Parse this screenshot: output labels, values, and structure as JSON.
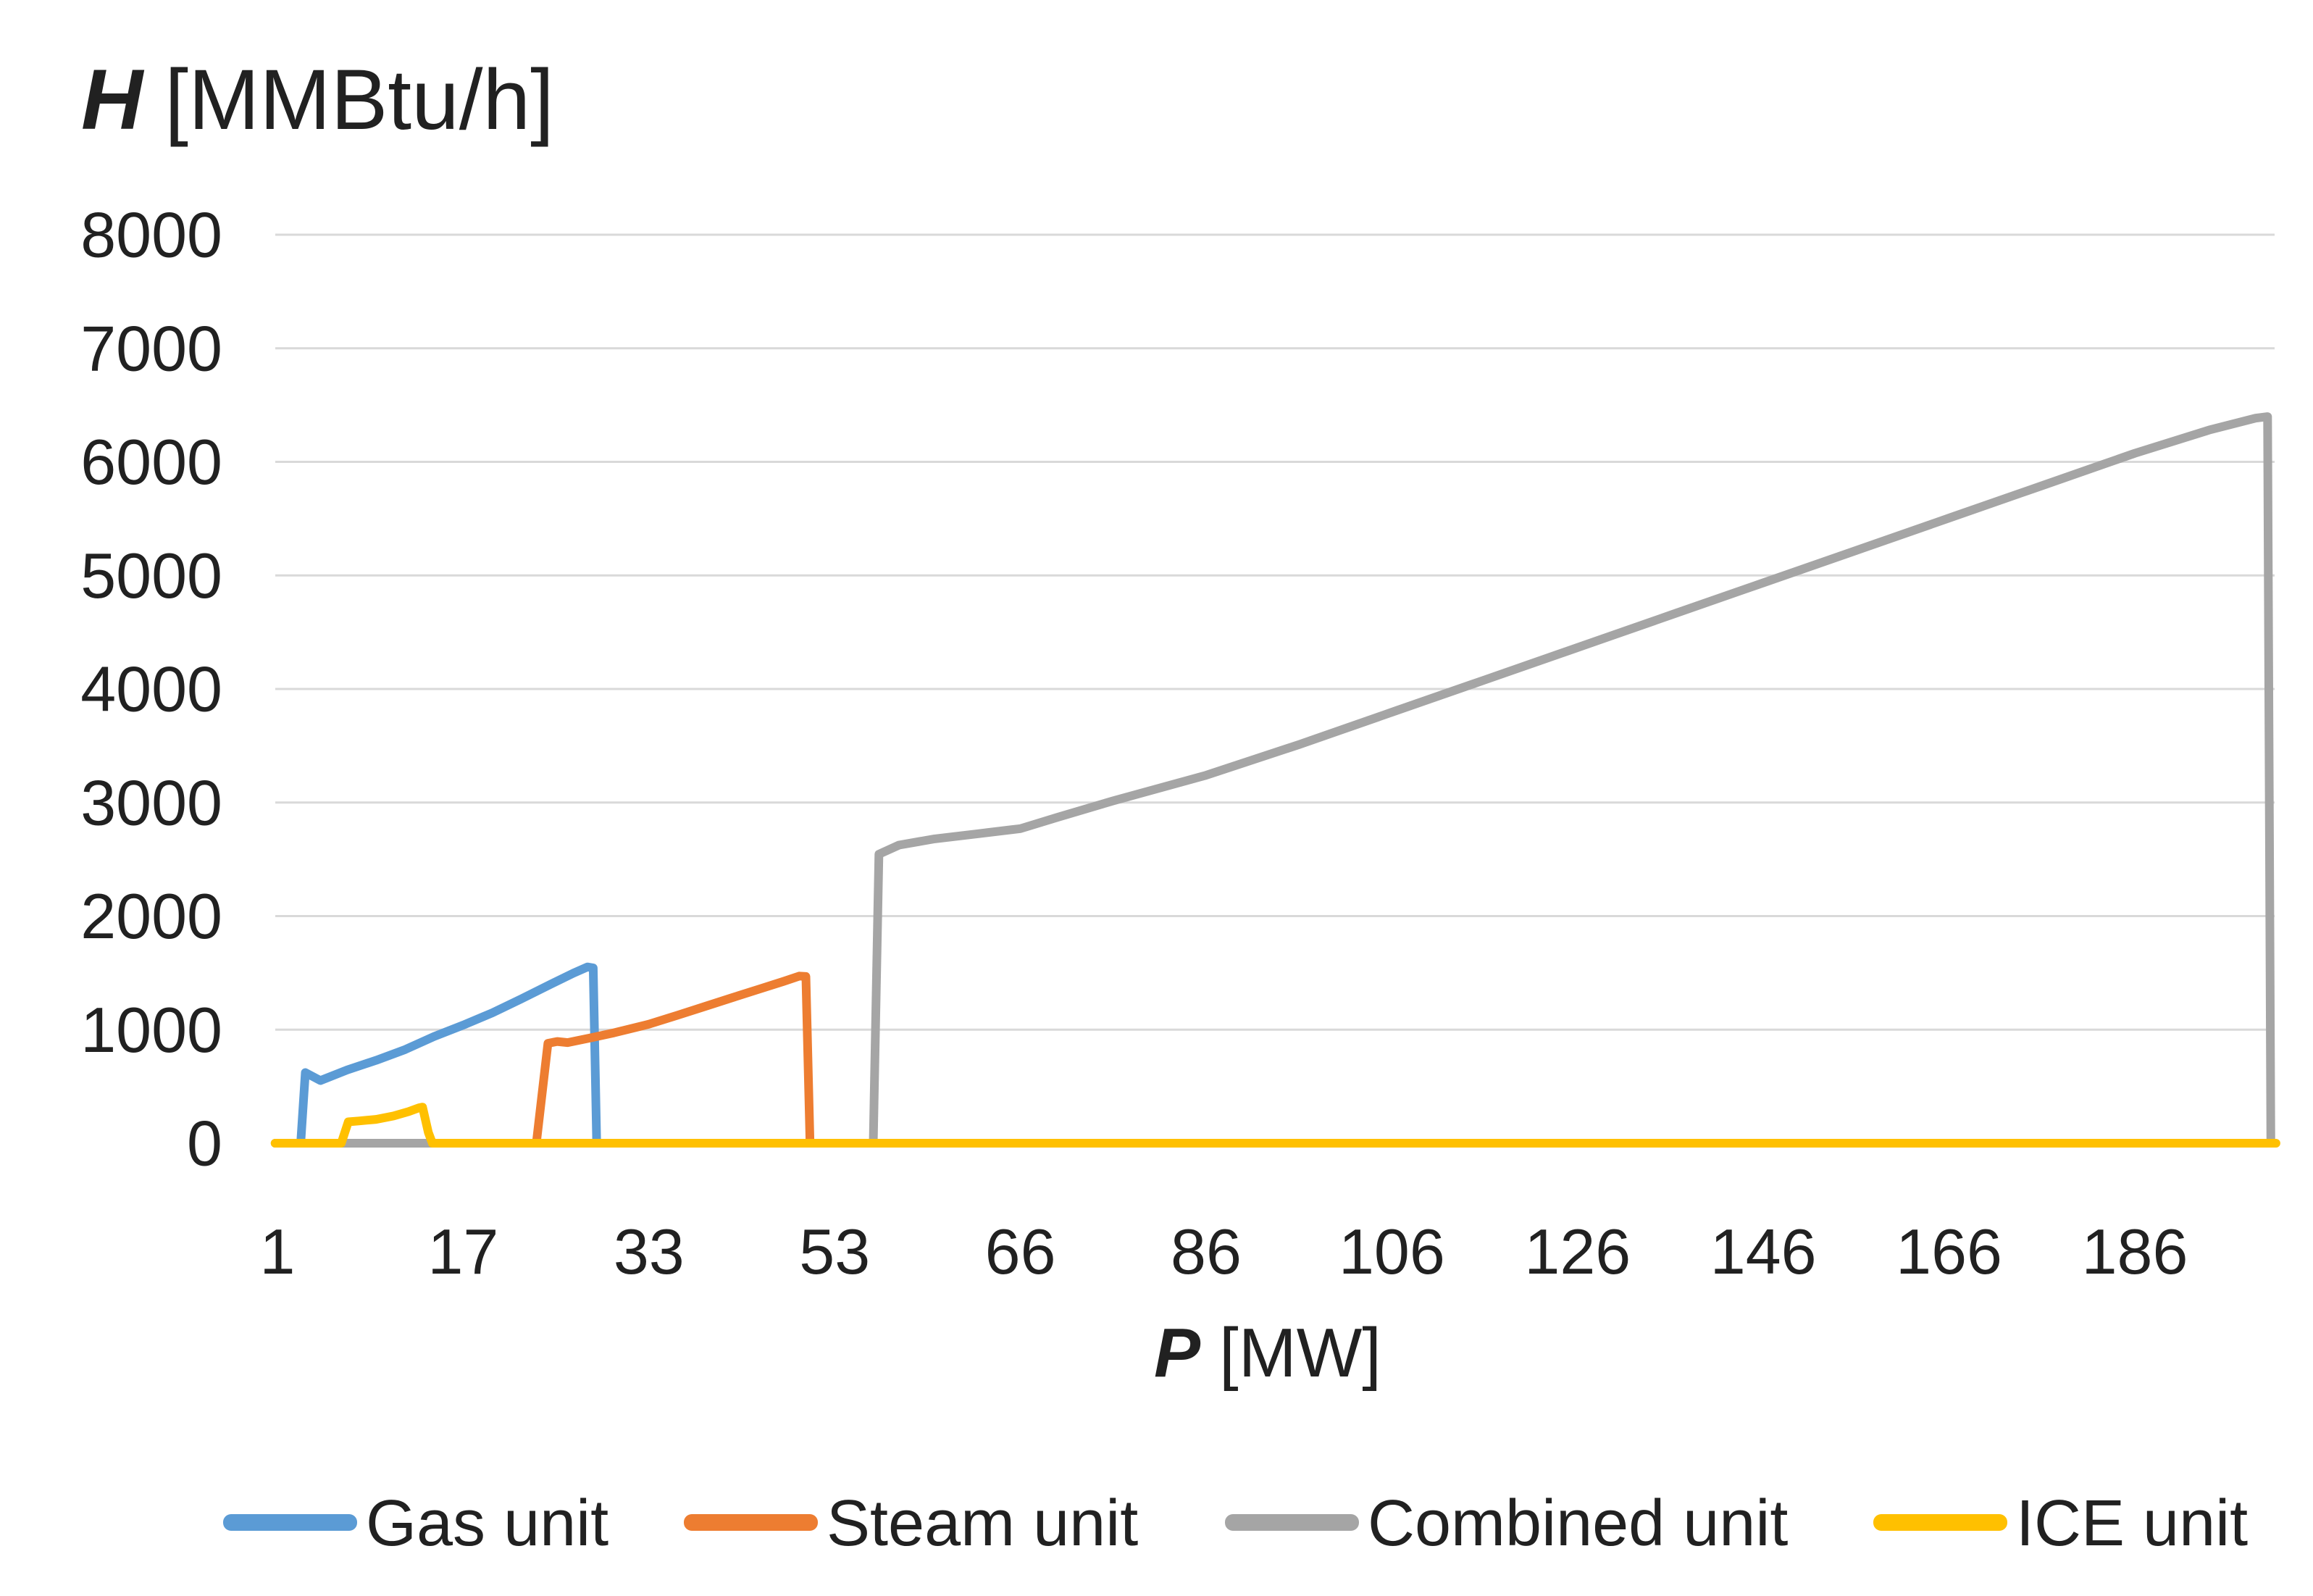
{
  "page": {
    "background": "#ffffff"
  },
  "chart_data": {
    "type": "line",
    "title": {
      "symbol": "H",
      "unit_label": "[MMBtu/h]"
    },
    "x_axis": {
      "symbol": "P",
      "unit_label": "[MW]",
      "axis_type": "category",
      "tick_values": [
        1,
        17,
        33,
        53,
        66,
        86,
        106,
        126,
        146,
        166,
        186
      ]
    },
    "y_axis": {
      "ticks": [
        0,
        1000,
        2000,
        3000,
        4000,
        5000,
        6000,
        7000,
        8000
      ],
      "min": 0,
      "max": 8000,
      "grid": true
    },
    "grid_color": "#d9d9d9",
    "text_color": "#212121",
    "line_width": 12,
    "legend_position": "bottom",
    "series": [
      {
        "name": "Gas unit",
        "color": "#5B9BD5",
        "points": [
          [
            3.0,
            0
          ],
          [
            3.4,
            622
          ],
          [
            4.7,
            552
          ],
          [
            7,
            645
          ],
          [
            9.5,
            730
          ],
          [
            12,
            825
          ],
          [
            14.5,
            940
          ],
          [
            17,
            1040
          ],
          [
            19.5,
            1148
          ],
          [
            22,
            1270
          ],
          [
            24.5,
            1398
          ],
          [
            26.5,
            1498
          ],
          [
            27.7,
            1552
          ],
          [
            28.2,
            1544
          ],
          [
            28.5,
            0
          ]
        ]
      },
      {
        "name": "Steam unit",
        "color": "#ED7D31",
        "points": [
          [
            23.3,
            0
          ],
          [
            24.3,
            880
          ],
          [
            25.1,
            896
          ],
          [
            26,
            886
          ],
          [
            28,
            928
          ],
          [
            30,
            972
          ],
          [
            33,
            1048
          ],
          [
            36,
            1125
          ],
          [
            39,
            1203
          ],
          [
            42,
            1282
          ],
          [
            45,
            1360
          ],
          [
            47.5,
            1425
          ],
          [
            49.2,
            1472
          ],
          [
            49.9,
            1468
          ],
          [
            50.35,
            0
          ]
        ]
      },
      {
        "name": "Combined unit",
        "color": "#A5A5A5",
        "points": [
          [
            0.8,
            0
          ],
          [
            55.7,
            0
          ],
          [
            56.1,
            2545
          ],
          [
            57.5,
            2625
          ],
          [
            60,
            2680
          ],
          [
            63,
            2725
          ],
          [
            66,
            2770
          ],
          [
            70,
            2870
          ],
          [
            76,
            3015
          ],
          [
            86,
            3240
          ],
          [
            96,
            3510
          ],
          [
            106,
            3795
          ],
          [
            116,
            4080
          ],
          [
            126,
            4365
          ],
          [
            136,
            4650
          ],
          [
            146,
            4935
          ],
          [
            156,
            5220
          ],
          [
            166,
            5505
          ],
          [
            176,
            5790
          ],
          [
            186,
            6075
          ],
          [
            194,
            6280
          ],
          [
            199,
            6385
          ],
          [
            200.3,
            6398
          ],
          [
            200.65,
            0
          ]
        ]
      },
      {
        "name": "ICE unit",
        "color": "#FFC000",
        "points": [
          [
            0.8,
            0
          ],
          [
            6.5,
            0
          ],
          [
            7.1,
            188
          ],
          [
            8,
            196
          ],
          [
            9.5,
            210
          ],
          [
            11,
            240
          ],
          [
            12.3,
            278
          ],
          [
            13.2,
            312
          ],
          [
            13.5,
            318
          ],
          [
            14.0,
            95
          ],
          [
            14.35,
            0
          ],
          [
            201.2,
            0
          ]
        ]
      }
    ]
  }
}
